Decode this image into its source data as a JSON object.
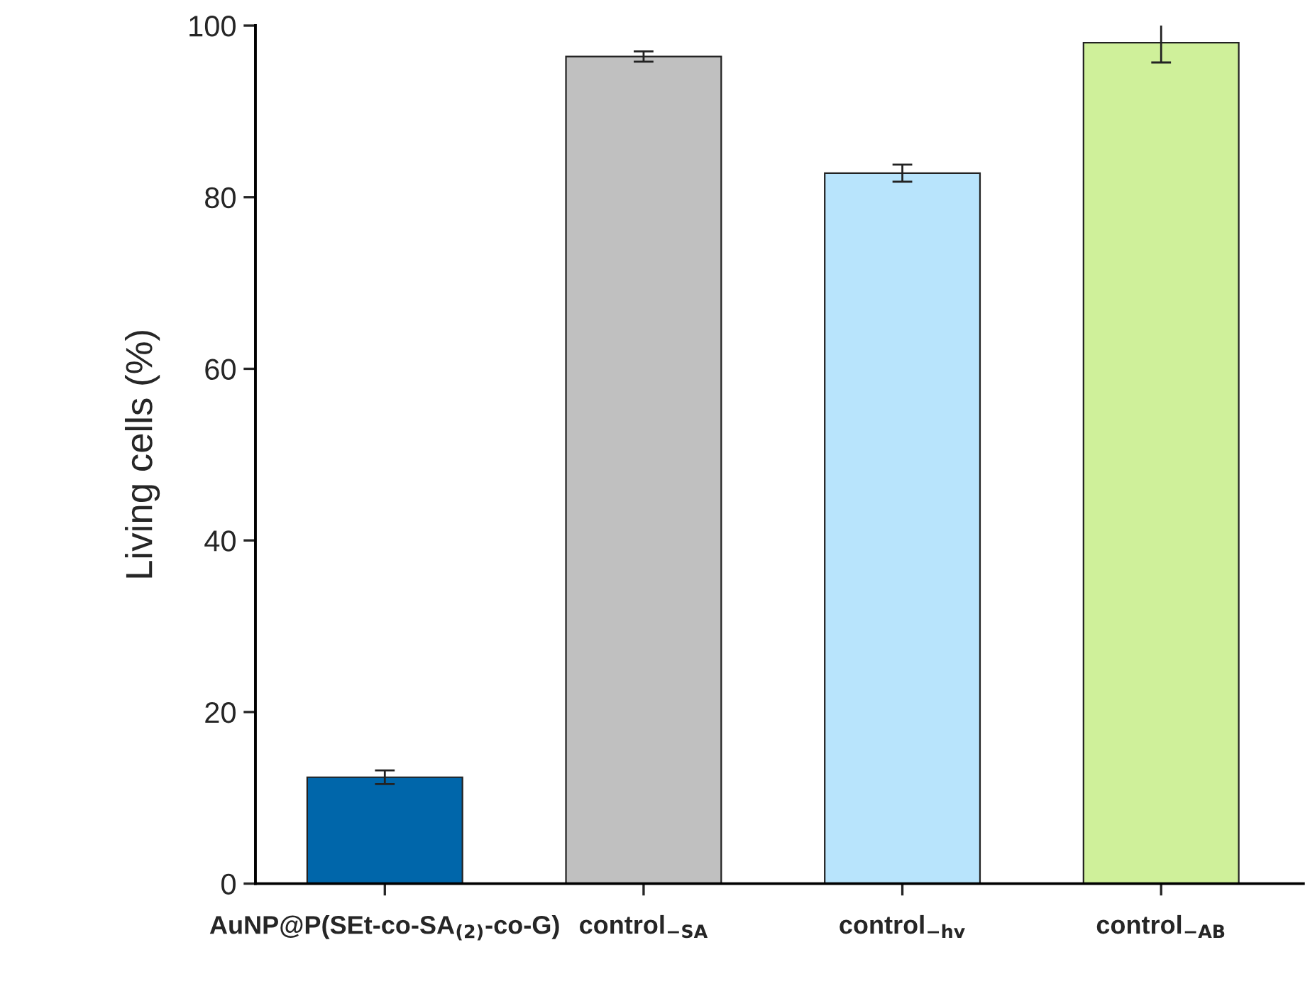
{
  "chart_data": {
    "type": "bar",
    "ylabel": "Living cells (%)",
    "categories": [
      "AuNP@P(SEt-co-SA$_{(2)}$-co-G)",
      "control$_{−SA}$",
      "control$_{−hv}$",
      "control$_{−AB}$"
    ],
    "values": [
      12.4,
      96.4,
      82.8,
      98.0
    ],
    "colors": [
      "#0066aa",
      "#c0c0c0",
      "#b8e4fc",
      "#cff09a"
    ],
    "errors": [
      0.8,
      0.6,
      1.0,
      2.3
    ],
    "ylim": [
      0,
      100
    ],
    "yticks": [
      0,
      20,
      40,
      60,
      80,
      100
    ],
    "grid": false
  }
}
